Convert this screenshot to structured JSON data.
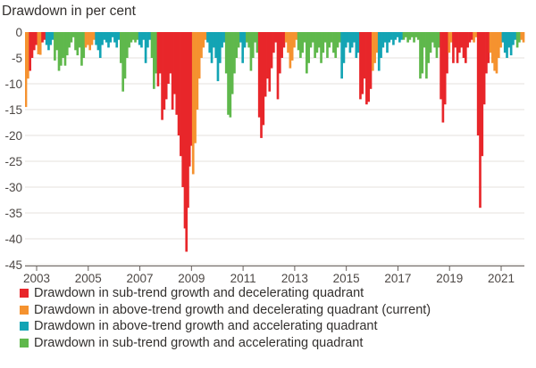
{
  "chart_data": {
    "type": "bar",
    "title": "Drawdown in per cent",
    "xlabel": "",
    "ylabel": "Drawdown in per cent",
    "xlim": [
      2002.55,
      2021.9
    ],
    "ylim": [
      -45,
      0
    ],
    "yticks": [
      0,
      -5,
      -10,
      -15,
      -20,
      -25,
      -30,
      -35,
      -40,
      -45
    ],
    "xticks": [
      2003,
      2005,
      2007,
      2009,
      2011,
      2013,
      2015,
      2017,
      2019,
      2021
    ],
    "grid": true,
    "legend_position": "bottom",
    "series": [
      {
        "name": "Drawdown in sub-trend growth and decelerating quadrant",
        "color": "#e8262a"
      },
      {
        "name": "Drawdown in above-trend growth and decelerating quadrant (current)",
        "color": "#f5922f"
      },
      {
        "name": "Drawdown in above-trend growth and accelerating quadrant",
        "color": "#13a4b4"
      },
      {
        "name": "Drawdown in sub-trend growth and accelerating quadrant",
        "color": "#5fb84c"
      }
    ],
    "points": [
      [
        2002.55,
        -14.5,
        1
      ],
      [
        2002.62,
        -9,
        1
      ],
      [
        2002.7,
        -7.5,
        0
      ],
      [
        2002.78,
        -5,
        0
      ],
      [
        2002.86,
        -3.5,
        0
      ],
      [
        2002.94,
        -2.5,
        0
      ],
      [
        2003.02,
        -4.3,
        1
      ],
      [
        2003.1,
        -4.4,
        1
      ],
      [
        2003.18,
        -2,
        0
      ],
      [
        2003.26,
        -1.5,
        0
      ],
      [
        2003.34,
        -2.5,
        2
      ],
      [
        2003.42,
        -3.5,
        2
      ],
      [
        2003.5,
        -2.5,
        2
      ],
      [
        2003.58,
        -1.5,
        2
      ],
      [
        2003.66,
        -5.5,
        3
      ],
      [
        2003.74,
        -3.5,
        3
      ],
      [
        2003.82,
        -7.5,
        3
      ],
      [
        2003.9,
        -6.5,
        3
      ],
      [
        2003.98,
        -5,
        3
      ],
      [
        2004.06,
        -6.5,
        3
      ],
      [
        2004.14,
        -4.5,
        3
      ],
      [
        2004.22,
        -3,
        3
      ],
      [
        2004.3,
        -2,
        3
      ],
      [
        2004.38,
        -1,
        3
      ],
      [
        2004.46,
        -3.5,
        3
      ],
      [
        2004.54,
        -4.5,
        3
      ],
      [
        2004.62,
        -3,
        3
      ],
      [
        2004.7,
        -6.5,
        3
      ],
      [
        2004.78,
        -5,
        3
      ],
      [
        2004.86,
        -3,
        1
      ],
      [
        2004.94,
        -2.5,
        1
      ],
      [
        2005.02,
        -3.5,
        1
      ],
      [
        2005.1,
        -2.5,
        1
      ],
      [
        2005.18,
        -1.5,
        1
      ],
      [
        2005.26,
        -2.5,
        2
      ],
      [
        2005.34,
        -3.5,
        2
      ],
      [
        2005.42,
        -5,
        2
      ],
      [
        2005.5,
        -2.5,
        2
      ],
      [
        2005.58,
        -1.5,
        2
      ],
      [
        2005.66,
        -2,
        2
      ],
      [
        2005.74,
        -3,
        2
      ],
      [
        2005.82,
        -2,
        2
      ],
      [
        2005.9,
        -1,
        2
      ],
      [
        2005.98,
        -2,
        2
      ],
      [
        2006.06,
        -3,
        2
      ],
      [
        2006.14,
        -1.5,
        2
      ],
      [
        2006.22,
        -6,
        3
      ],
      [
        2006.3,
        -11.5,
        3
      ],
      [
        2006.38,
        -9,
        3
      ],
      [
        2006.46,
        -5,
        3
      ],
      [
        2006.54,
        -3,
        3
      ],
      [
        2006.62,
        -2,
        3
      ],
      [
        2006.7,
        -1.5,
        3
      ],
      [
        2006.78,
        -2,
        3
      ],
      [
        2006.86,
        -1.5,
        3
      ],
      [
        2006.94,
        -2.5,
        2
      ],
      [
        2007.02,
        -3,
        2
      ],
      [
        2007.1,
        -1.5,
        2
      ],
      [
        2007.18,
        -6,
        2
      ],
      [
        2007.26,
        -3,
        2
      ],
      [
        2007.34,
        -1.5,
        2
      ],
      [
        2007.42,
        -5,
        3
      ],
      [
        2007.5,
        -11,
        3
      ],
      [
        2007.58,
        -8,
        3
      ],
      [
        2007.66,
        -10.5,
        0
      ],
      [
        2007.74,
        -8,
        0
      ],
      [
        2007.82,
        -17,
        0
      ],
      [
        2007.9,
        -15,
        0
      ],
      [
        2007.98,
        -13,
        0
      ],
      [
        2008.06,
        -10,
        0
      ],
      [
        2008.14,
        -8,
        0
      ],
      [
        2008.22,
        -15,
        0
      ],
      [
        2008.3,
        -12,
        0
      ],
      [
        2008.38,
        -16,
        0
      ],
      [
        2008.46,
        -20,
        0
      ],
      [
        2008.54,
        -24,
        0
      ],
      [
        2008.62,
        -30,
        0
      ],
      [
        2008.7,
        -38,
        0
      ],
      [
        2008.76,
        -42.5,
        0
      ],
      [
        2008.84,
        -34,
        0
      ],
      [
        2008.9,
        -26,
        0
      ],
      [
        2008.96,
        -22,
        0
      ],
      [
        2009.02,
        -27.5,
        1
      ],
      [
        2009.1,
        -21.5,
        1
      ],
      [
        2009.18,
        -15,
        1
      ],
      [
        2009.26,
        -9,
        1
      ],
      [
        2009.34,
        -5,
        1
      ],
      [
        2009.42,
        -3,
        1
      ],
      [
        2009.5,
        -1.5,
        1
      ],
      [
        2009.58,
        -2,
        2
      ],
      [
        2009.66,
        -4,
        2
      ],
      [
        2009.74,
        -6,
        2
      ],
      [
        2009.82,
        -3,
        2
      ],
      [
        2009.9,
        -5,
        2
      ],
      [
        2009.98,
        -9.5,
        2
      ],
      [
        2010.06,
        -6,
        2
      ],
      [
        2010.14,
        -3,
        2
      ],
      [
        2010.22,
        -2,
        2
      ],
      [
        2010.3,
        -8,
        3
      ],
      [
        2010.38,
        -16,
        3
      ],
      [
        2010.46,
        -16.5,
        3
      ],
      [
        2010.54,
        -12,
        3
      ],
      [
        2010.62,
        -8,
        3
      ],
      [
        2010.7,
        -5,
        3
      ],
      [
        2010.78,
        -3,
        3
      ],
      [
        2010.86,
        -2,
        2
      ],
      [
        2010.94,
        -6,
        2
      ],
      [
        2011.02,
        -3,
        2
      ],
      [
        2011.1,
        -2,
        3
      ],
      [
        2011.18,
        -3,
        3
      ],
      [
        2011.26,
        -7.5,
        3
      ],
      [
        2011.34,
        -5,
        3
      ],
      [
        2011.42,
        -2,
        3
      ],
      [
        2011.5,
        -4,
        3
      ],
      [
        2011.58,
        -16.5,
        0
      ],
      [
        2011.66,
        -20.5,
        0
      ],
      [
        2011.74,
        -18,
        0
      ],
      [
        2011.82,
        -12.5,
        0
      ],
      [
        2011.9,
        -9,
        0
      ],
      [
        2011.98,
        -11.5,
        0
      ],
      [
        2012.06,
        -7,
        0
      ],
      [
        2012.14,
        -4,
        0
      ],
      [
        2012.22,
        -2,
        0
      ],
      [
        2012.3,
        -13,
        0
      ],
      [
        2012.38,
        -8,
        0
      ],
      [
        2012.46,
        -5,
        0
      ],
      [
        2012.54,
        -3,
        0
      ],
      [
        2012.62,
        -2,
        1
      ],
      [
        2012.7,
        -4,
        1
      ],
      [
        2012.78,
        -7,
        1
      ],
      [
        2012.86,
        -5.5,
        1
      ],
      [
        2012.94,
        -3,
        1
      ],
      [
        2013.02,
        -1.5,
        1
      ],
      [
        2013.1,
        -3.5,
        3
      ],
      [
        2013.18,
        -5,
        3
      ],
      [
        2013.26,
        -4,
        3
      ],
      [
        2013.34,
        -2,
        3
      ],
      [
        2013.42,
        -8,
        3
      ],
      [
        2013.5,
        -6,
        3
      ],
      [
        2013.58,
        -3,
        3
      ],
      [
        2013.66,
        -2,
        3
      ],
      [
        2013.74,
        -5,
        3
      ],
      [
        2013.82,
        -4,
        3
      ],
      [
        2013.9,
        -3,
        3
      ],
      [
        2013.98,
        -6,
        3
      ],
      [
        2014.06,
        -4,
        3
      ],
      [
        2014.14,
        -2,
        3
      ],
      [
        2014.22,
        -5,
        3
      ],
      [
        2014.3,
        -3,
        3
      ],
      [
        2014.38,
        -2,
        3
      ],
      [
        2014.46,
        -4,
        3
      ],
      [
        2014.54,
        -5,
        3
      ],
      [
        2014.62,
        -3,
        3
      ],
      [
        2014.7,
        -2,
        3
      ],
      [
        2014.78,
        -9,
        2
      ],
      [
        2014.86,
        -6,
        2
      ],
      [
        2014.94,
        -3,
        2
      ],
      [
        2015.02,
        -2,
        2
      ],
      [
        2015.1,
        -4,
        2
      ],
      [
        2015.18,
        -3,
        2
      ],
      [
        2015.26,
        -2,
        2
      ],
      [
        2015.34,
        -5,
        2
      ],
      [
        2015.42,
        -4,
        2
      ],
      [
        2015.5,
        -13,
        0
      ],
      [
        2015.58,
        -12,
        0
      ],
      [
        2015.66,
        -9,
        0
      ],
      [
        2015.74,
        -14,
        0
      ],
      [
        2015.82,
        -13.5,
        0
      ],
      [
        2015.9,
        -11,
        0
      ],
      [
        2015.98,
        -7.5,
        1
      ],
      [
        2016.06,
        -6,
        1
      ],
      [
        2016.14,
        -4,
        1
      ],
      [
        2016.22,
        -7.5,
        2
      ],
      [
        2016.3,
        -5,
        2
      ],
      [
        2016.38,
        -3,
        2
      ],
      [
        2016.46,
        -2,
        2
      ],
      [
        2016.54,
        -4,
        2
      ],
      [
        2016.62,
        -2,
        2
      ],
      [
        2016.7,
        -1.5,
        2
      ],
      [
        2016.78,
        -2.5,
        2
      ],
      [
        2016.86,
        -1.5,
        2
      ],
      [
        2016.94,
        -1,
        2
      ],
      [
        2017.02,
        -2,
        2
      ],
      [
        2017.1,
        -1.5,
        2
      ],
      [
        2017.18,
        -1.5,
        3
      ],
      [
        2017.26,
        -1,
        3
      ],
      [
        2017.34,
        -2,
        3
      ],
      [
        2017.42,
        -1.5,
        3
      ],
      [
        2017.5,
        -1,
        3
      ],
      [
        2017.58,
        -2,
        3
      ],
      [
        2017.66,
        -1,
        3
      ],
      [
        2017.74,
        -1.5,
        3
      ],
      [
        2017.82,
        -9,
        3
      ],
      [
        2017.9,
        -8,
        3
      ],
      [
        2017.98,
        -3,
        3
      ],
      [
        2018.06,
        -9,
        3
      ],
      [
        2018.14,
        -6,
        3
      ],
      [
        2018.22,
        -4,
        3
      ],
      [
        2018.3,
        -2,
        3
      ],
      [
        2018.38,
        -3,
        3
      ],
      [
        2018.46,
        -5,
        3
      ],
      [
        2018.54,
        -3,
        3
      ],
      [
        2018.62,
        -13,
        0
      ],
      [
        2018.7,
        -17.5,
        0
      ],
      [
        2018.78,
        -14,
        0
      ],
      [
        2018.86,
        -8,
        0
      ],
      [
        2018.94,
        -4,
        1
      ],
      [
        2019.02,
        -2,
        1
      ],
      [
        2019.1,
        -6,
        0
      ],
      [
        2019.18,
        -3,
        0
      ],
      [
        2019.26,
        -6,
        0
      ],
      [
        2019.34,
        -4,
        0
      ],
      [
        2019.42,
        -3,
        0
      ],
      [
        2019.5,
        -5,
        0
      ],
      [
        2019.58,
        -6,
        0
      ],
      [
        2019.66,
        -3,
        0
      ],
      [
        2019.74,
        -2,
        0
      ],
      [
        2019.82,
        -1.5,
        0
      ],
      [
        2019.9,
        -2,
        1
      ],
      [
        2019.98,
        -1,
        1
      ],
      [
        2020.06,
        -20,
        0
      ],
      [
        2020.14,
        -34,
        0
      ],
      [
        2020.22,
        -24,
        0
      ],
      [
        2020.3,
        -14,
        0
      ],
      [
        2020.38,
        -8,
        0
      ],
      [
        2020.46,
        -6,
        0
      ],
      [
        2020.54,
        -4,
        1
      ],
      [
        2020.62,
        -6,
        1
      ],
      [
        2020.7,
        -7.5,
        1
      ],
      [
        2020.78,
        -8,
        1
      ],
      [
        2020.86,
        -5,
        1
      ],
      [
        2020.94,
        -3,
        1
      ],
      [
        2021.02,
        -2,
        2
      ],
      [
        2021.1,
        -4,
        2
      ],
      [
        2021.18,
        -5,
        2
      ],
      [
        2021.26,
        -3,
        2
      ],
      [
        2021.34,
        -4.5,
        2
      ],
      [
        2021.42,
        -2.5,
        2
      ],
      [
        2021.5,
        -1.5,
        2
      ],
      [
        2021.58,
        -3,
        3
      ],
      [
        2021.66,
        -2,
        3
      ],
      [
        2021.74,
        -1.5,
        1
      ],
      [
        2021.82,
        -2,
        1
      ]
    ]
  }
}
